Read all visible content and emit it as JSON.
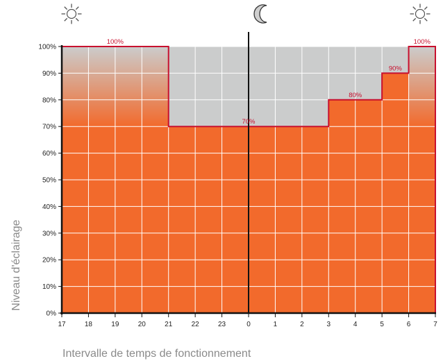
{
  "chart_data": {
    "type": "area",
    "xlabel": "Intervalle de temps de fonctionnement",
    "ylabel": "Niveau d'éclairage",
    "x_ticks": [
      "17",
      "18",
      "19",
      "20",
      "21",
      "22",
      "23",
      "0",
      "1",
      "2",
      "3",
      "4",
      "5",
      "6",
      "7"
    ],
    "y_ticks": [
      "0%",
      "10%",
      "20%",
      "30%",
      "40%",
      "50%",
      "60%",
      "70%",
      "80%",
      "90%",
      "100%"
    ],
    "ylim": [
      0,
      100
    ],
    "grid": true,
    "segments": [
      {
        "from": "17",
        "to": "21",
        "level": 100,
        "label": "100%"
      },
      {
        "from": "21",
        "to": "3",
        "level": 70,
        "label": "70%"
      },
      {
        "from": "3",
        "to": "5",
        "level": 80,
        "label": "80%"
      },
      {
        "from": "5",
        "to": "6",
        "level": 90,
        "label": "90%"
      },
      {
        "from": "6",
        "to": "7",
        "level": 100,
        "label": "100%"
      }
    ],
    "icons": [
      {
        "name": "sun-icon",
        "at": "17"
      },
      {
        "name": "moon-icon",
        "at": "0"
      },
      {
        "name": "sun-icon",
        "at": "7"
      }
    ],
    "colors": {
      "fill": "#f26a2c",
      "background": "#cbcccc",
      "grid": "#ffffff",
      "level_line": "#c8102e",
      "axis": "#111111"
    }
  }
}
